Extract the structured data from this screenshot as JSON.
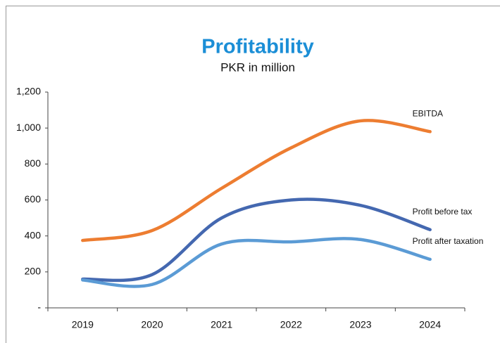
{
  "chart_data": {
    "type": "line",
    "title": "Profitability",
    "subtitle": "PKR in million",
    "categories": [
      "2019",
      "2020",
      "2021",
      "2022",
      "2023",
      "2024"
    ],
    "series": [
      {
        "name": "EBITDA",
        "color": "#ed7d31",
        "values": [
          375,
          430,
          665,
          890,
          1040,
          980
        ]
      },
      {
        "name": "Profit before tax",
        "color": "#4468b0",
        "values": [
          160,
          185,
          500,
          600,
          570,
          435
        ]
      },
      {
        "name": "Profit after taxation",
        "color": "#5b9bd5",
        "values": [
          155,
          130,
          355,
          367,
          380,
          270
        ]
      }
    ],
    "ylim": [
      0,
      1200
    ],
    "yticks": [
      {
        "value": 0,
        "label": "-"
      },
      200,
      400,
      600,
      800,
      {
        "value": 1000,
        "label": "1,000"
      },
      {
        "value": 1200,
        "label": "1,200"
      }
    ],
    "grid": false
  }
}
